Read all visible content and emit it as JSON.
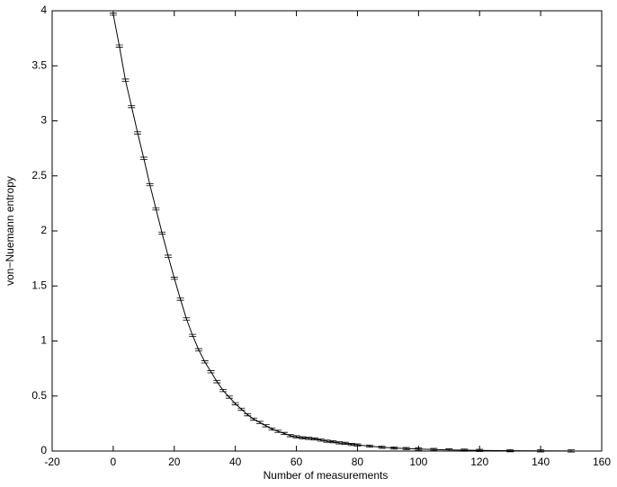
{
  "chart_data": {
    "type": "errorbar",
    "xlabel": "Number of measurements",
    "ylabel": "von−Nuemann entropy",
    "xlim": [
      -20,
      160
    ],
    "xticks": [
      -20,
      0,
      20,
      40,
      60,
      80,
      100,
      120,
      140,
      160
    ],
    "ylim": [
      0,
      4
    ],
    "yticks": [
      0,
      0.5,
      1,
      1.5,
      2,
      2.5,
      3,
      3.5,
      4
    ],
    "grid": false,
    "x": [
      0,
      2,
      4,
      6,
      8,
      10,
      12,
      14,
      16,
      18,
      20,
      22,
      24,
      26,
      28,
      30,
      32,
      34,
      36,
      38,
      40,
      42,
      44,
      46,
      48,
      50,
      52,
      54,
      56,
      58,
      60,
      62,
      64,
      66,
      68,
      70,
      72,
      74,
      76,
      78,
      80,
      84,
      88,
      92,
      96,
      100,
      105,
      110,
      115,
      120,
      130,
      140,
      150
    ],
    "series": [
      {
        "color": "#000000",
        "values": [
          3.97,
          3.68,
          3.37,
          3.13,
          2.89,
          2.66,
          2.42,
          2.2,
          1.98,
          1.77,
          1.57,
          1.38,
          1.2,
          1.05,
          0.92,
          0.81,
          0.72,
          0.63,
          0.55,
          0.49,
          0.43,
          0.38,
          0.33,
          0.29,
          0.26,
          0.23,
          0.2,
          0.18,
          0.16,
          0.14,
          0.13,
          0.12,
          0.115,
          0.11,
          0.1,
          0.09,
          0.085,
          0.075,
          0.07,
          0.06,
          0.055,
          0.045,
          0.035,
          0.028,
          0.022,
          0.018,
          0.014,
          0.01,
          0.008,
          0.006,
          0.003,
          0.002,
          0.001
        ],
        "errors": [
          0.01,
          0.01,
          0.01,
          0.01,
          0.01,
          0.01,
          0.01,
          0.01,
          0.01,
          0.01,
          0.01,
          0.01,
          0.01,
          0.01,
          0.01,
          0.01,
          0.01,
          0.01,
          0.01,
          0.01,
          0.01,
          0.01,
          0.01,
          0.01,
          0.01,
          0.01,
          0.01,
          0.01,
          0.01,
          0.01,
          0.01,
          0.01,
          0.01,
          0.01,
          0.01,
          0.01,
          0.01,
          0.01,
          0.01,
          0.01,
          0.01,
          0.01,
          0.01,
          0.01,
          0.01,
          0.01,
          0.01,
          0.01,
          0.01,
          0.01,
          0.01,
          0.01,
          0.01
        ]
      }
    ]
  }
}
